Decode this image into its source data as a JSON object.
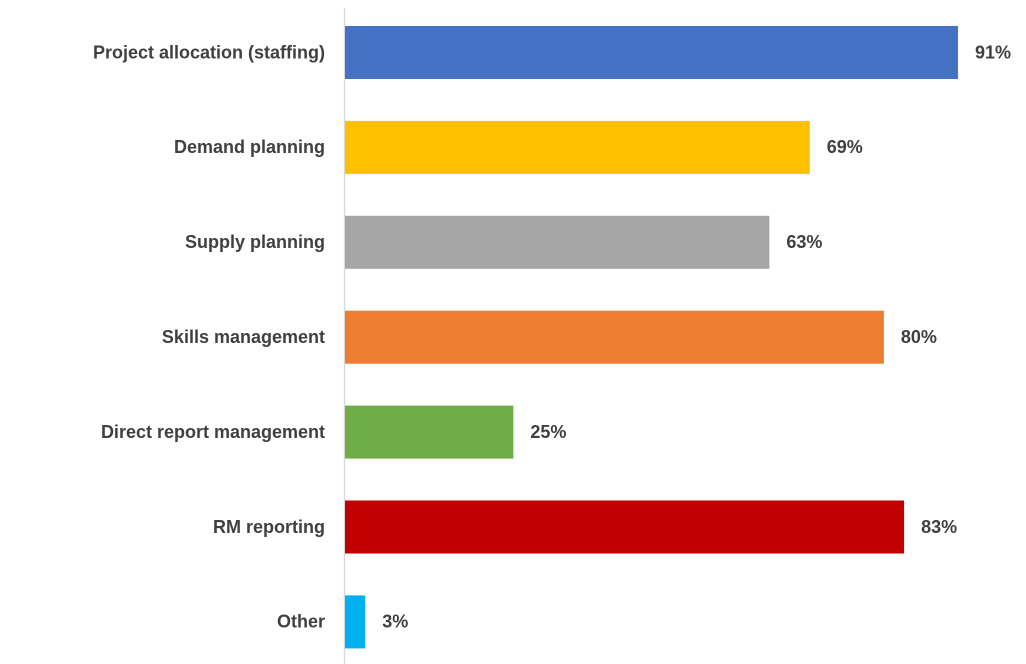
{
  "chart_data": {
    "type": "barh",
    "categories": [
      "Project allocation (staffing)",
      "Demand planning",
      "Supply planning",
      "Skills management",
      "Direct report management",
      "RM reporting",
      "Other"
    ],
    "values": [
      91,
      69,
      63,
      80,
      25,
      83,
      3
    ],
    "value_labels": [
      "91%",
      "69%",
      "63%",
      "80%",
      "25%",
      "83%",
      "3%"
    ],
    "colors": [
      "#4472c4",
      "#ffc000",
      "#a5a5a5",
      "#ed7d31",
      "#70ad47",
      "#c00000",
      "#00b0f0"
    ]
  }
}
